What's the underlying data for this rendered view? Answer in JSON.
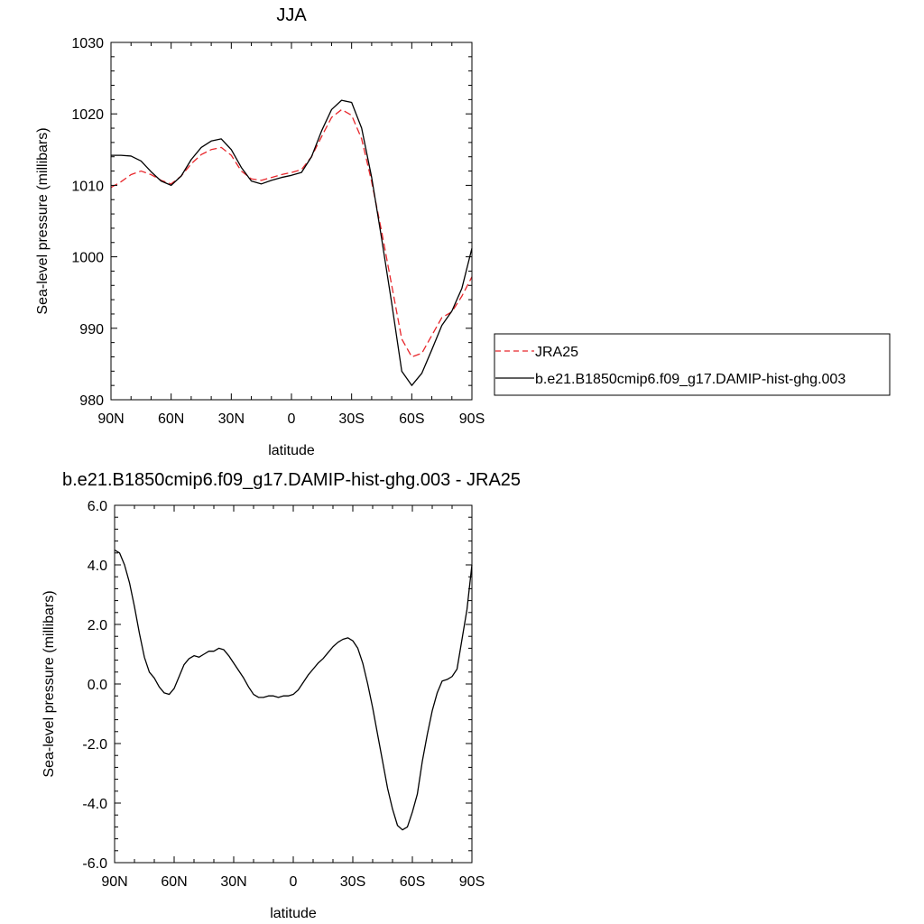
{
  "chart_data": [
    {
      "type": "line",
      "title": "JJA",
      "xlabel": "latitude",
      "ylabel": "Sea-level pressure (millibars)",
      "xlim": [
        90,
        -90
      ],
      "ylim": [
        980,
        1030
      ],
      "xticks": [
        90,
        60,
        30,
        0,
        -30,
        -60,
        -90
      ],
      "xtick_labels": [
        "90N",
        "60N",
        "30N",
        "0",
        "30S",
        "60S",
        "90S"
      ],
      "yticks": [
        980,
        990,
        1000,
        1010,
        1020,
        1030
      ],
      "ytick_labels": [
        "980",
        "990",
        "1000",
        "1010",
        "1020",
        "1030"
      ],
      "grid": false,
      "legend": "right",
      "series": [
        {
          "name": "JRA25",
          "color": "#e8262b",
          "dash": "dashed",
          "x": [
            90,
            85,
            80,
            75,
            70,
            65,
            60,
            55,
            50,
            45,
            40,
            35,
            30,
            25,
            20,
            15,
            10,
            5,
            0,
            -5,
            -10,
            -15,
            -20,
            -25,
            -30,
            -35,
            -40,
            -45,
            -50,
            -55,
            -60,
            -65,
            -70,
            -75,
            -80,
            -85,
            -90
          ],
          "y": [
            1009.7,
            1010.5,
            1011.5,
            1012.0,
            1011.5,
            1010.7,
            1010.2,
            1011.3,
            1013.0,
            1014.3,
            1015.0,
            1015.3,
            1014.2,
            1012.0,
            1010.9,
            1010.7,
            1011.1,
            1011.5,
            1011.8,
            1012.2,
            1014.0,
            1016.8,
            1019.5,
            1020.6,
            1019.8,
            1016.5,
            1010.5,
            1003.5,
            996.0,
            988.5,
            986.0,
            986.5,
            989.0,
            991.5,
            992.3,
            994.5,
            997.2
          ]
        },
        {
          "name": "b.e21.B1850cmip6.f09_g17.DAMIP-hist-ghg.003",
          "color": "#000000",
          "dash": "solid",
          "x": [
            90,
            85,
            80,
            75,
            70,
            65,
            60,
            55,
            50,
            45,
            40,
            35,
            30,
            25,
            20,
            15,
            10,
            5,
            0,
            -5,
            -10,
            -15,
            -20,
            -25,
            -30,
            -35,
            -40,
            -45,
            -50,
            -55,
            -60,
            -65,
            -70,
            -75,
            -80,
            -85,
            -90
          ],
          "y": [
            1014.2,
            1014.2,
            1014.1,
            1013.4,
            1011.9,
            1010.6,
            1010.0,
            1011.3,
            1013.6,
            1015.3,
            1016.2,
            1016.5,
            1015.0,
            1012.5,
            1010.6,
            1010.2,
            1010.7,
            1011.1,
            1011.4,
            1011.8,
            1014.0,
            1017.6,
            1020.6,
            1021.9,
            1021.6,
            1018.0,
            1011.1,
            1002.5,
            993.5,
            984.0,
            982.0,
            983.7,
            987.0,
            990.4,
            992.4,
            995.6,
            1001.2
          ]
        }
      ]
    },
    {
      "type": "line",
      "title": "b.e21.B1850cmip6.f09_g17.DAMIP-hist-ghg.003 - JRA25",
      "xlabel": "latitude",
      "ylabel": "Sea-level pressure (millibars)",
      "xlim": [
        90,
        -90
      ],
      "ylim": [
        -6,
        6
      ],
      "xticks": [
        90,
        60,
        30,
        0,
        -30,
        -60,
        -90
      ],
      "xtick_labels": [
        "90N",
        "60N",
        "30N",
        "0",
        "30S",
        "60S",
        "90S"
      ],
      "yticks": [
        -6,
        -4,
        -2,
        0,
        2,
        4,
        6
      ],
      "ytick_labels": [
        "-6.0",
        "-4.0",
        "-2.0",
        "0.0",
        "2.0",
        "4.0",
        "6.0"
      ],
      "grid": false,
      "series": [
        {
          "color": "#000000",
          "dash": "solid",
          "x": [
            90,
            87.5,
            85,
            82.5,
            80,
            77.5,
            75,
            72.5,
            70,
            67.5,
            65,
            62.5,
            60,
            57.5,
            55,
            52.5,
            50,
            47.5,
            45,
            42.5,
            40,
            37.5,
            35,
            32.5,
            30,
            27.5,
            25,
            22.5,
            20,
            17.5,
            15,
            12.5,
            10,
            7.5,
            5,
            2.5,
            0,
            -2.5,
            -5,
            -7.5,
            -10,
            -12.5,
            -15,
            -17.5,
            -20,
            -22.5,
            -25,
            -27.5,
            -30,
            -32.5,
            -35,
            -37.5,
            -40,
            -42.5,
            -45,
            -47.5,
            -50,
            -52.5,
            -55,
            -57.5,
            -60,
            -62.5,
            -65,
            -67.5,
            -70,
            -72.5,
            -75,
            -77.5,
            -80,
            -82.5,
            -85,
            -87.5,
            -90
          ],
          "y": [
            4.5,
            4.4,
            4.0,
            3.4,
            2.6,
            1.7,
            0.9,
            0.4,
            0.2,
            -0.1,
            -0.3,
            -0.35,
            -0.15,
            0.25,
            0.65,
            0.85,
            0.95,
            0.9,
            1.0,
            1.1,
            1.1,
            1.2,
            1.15,
            0.95,
            0.7,
            0.45,
            0.2,
            -0.1,
            -0.35,
            -0.45,
            -0.45,
            -0.4,
            -0.4,
            -0.45,
            -0.4,
            -0.4,
            -0.35,
            -0.2,
            0.05,
            0.3,
            0.5,
            0.7,
            0.85,
            1.05,
            1.25,
            1.4,
            1.5,
            1.55,
            1.45,
            1.2,
            0.7,
            0.0,
            -0.8,
            -1.7,
            -2.6,
            -3.5,
            -4.2,
            -4.75,
            -4.9,
            -4.8,
            -4.3,
            -3.7,
            -2.6,
            -1.7,
            -0.9,
            -0.3,
            0.1,
            0.15,
            0.25,
            0.5,
            1.5,
            2.5,
            4.0
          ]
        }
      ]
    }
  ]
}
